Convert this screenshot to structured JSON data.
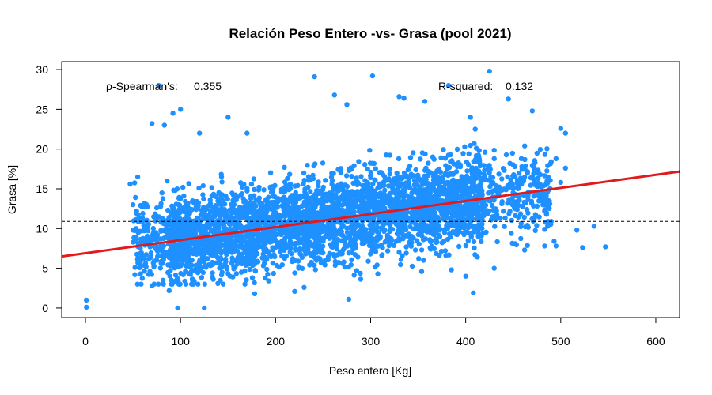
{
  "chart_data": {
    "type": "scatter",
    "title": "Relación Peso Entero -vs- Grasa (pool 2021)",
    "xlabel": "Peso entero [Kg]",
    "ylabel": "Grasa [%]",
    "xlim": [
      -25,
      625
    ],
    "ylim": [
      -1.2,
      31
    ],
    "x_ticks": [
      0,
      100,
      200,
      300,
      400,
      500,
      600
    ],
    "y_ticks": [
      0,
      5,
      10,
      15,
      20,
      25,
      30
    ],
    "grid": false,
    "legend": "none",
    "point_color": "#1E90FF",
    "regression_color": "#E31A1C",
    "regression_line": {
      "intercept": 6.9,
      "slope": 0.01643
    },
    "reference_line": {
      "y": 10.9,
      "style": "dashed",
      "color": "#000000"
    },
    "annotations": [
      {
        "label": "ρ-Spearman's:",
        "value": "0.355"
      },
      {
        "label": "R-squared:",
        "value": "0.132"
      }
    ],
    "cloud": {
      "description_points": "dense bulk generated from summary",
      "n_points": 3800,
      "x_range": [
        50,
        490
      ],
      "y_mean_at_x": {
        "intercept": 7.3,
        "slope": 0.0155
      },
      "y_spread": 3.4
    },
    "points": [
      [
        1,
        1.0
      ],
      [
        1,
        0.1
      ],
      [
        97,
        0.0
      ],
      [
        125,
        0.0
      ],
      [
        77,
        28.0
      ],
      [
        100,
        25.0
      ],
      [
        92,
        24.5
      ],
      [
        241,
        29.1
      ],
      [
        302,
        29.2
      ],
      [
        425,
        29.8
      ],
      [
        382,
        28.0
      ],
      [
        330,
        26.6
      ],
      [
        335,
        26.4
      ],
      [
        262,
        26.8
      ],
      [
        357,
        26.0
      ],
      [
        275,
        25.6
      ],
      [
        150,
        24.0
      ],
      [
        70,
        23.2
      ],
      [
        83,
        23.0
      ],
      [
        120,
        22.0
      ],
      [
        170,
        22.0
      ],
      [
        405,
        24.0
      ],
      [
        410,
        22.5
      ],
      [
        445,
        26.3
      ],
      [
        470,
        24.8
      ],
      [
        500,
        22.6
      ],
      [
        505,
        22.0
      ],
      [
        495,
        18.8
      ],
      [
        505,
        17.6
      ],
      [
        500,
        15.8
      ],
      [
        490,
        18.4
      ],
      [
        487,
        14.8
      ],
      [
        475,
        14.4
      ],
      [
        485,
        11.8
      ],
      [
        490,
        10.9
      ],
      [
        483,
        9.9
      ],
      [
        493,
        8.4
      ],
      [
        495,
        7.8
      ],
      [
        517,
        9.8
      ],
      [
        535,
        10.3
      ],
      [
        523,
        7.6
      ],
      [
        547,
        7.7
      ],
      [
        483,
        7.8
      ],
      [
        462,
        7.3
      ],
      [
        452,
        8.1
      ],
      [
        408,
        1.9
      ],
      [
        430,
        5.0
      ],
      [
        400,
        4.0
      ],
      [
        385,
        4.8
      ],
      [
        277,
        1.1
      ],
      [
        178,
        1.8
      ],
      [
        220,
        2.1
      ],
      [
        230,
        2.6
      ],
      [
        88,
        2.2
      ],
      [
        70,
        2.8
      ],
      [
        52,
        4.2
      ],
      [
        58,
        5.2
      ],
      [
        72,
        5.2
      ],
      [
        50,
        9.8
      ],
      [
        47,
        15.6
      ],
      [
        55,
        16.5
      ],
      [
        50,
        13.0
      ],
      [
        60,
        11.3
      ],
      [
        75,
        12.6
      ]
    ]
  }
}
